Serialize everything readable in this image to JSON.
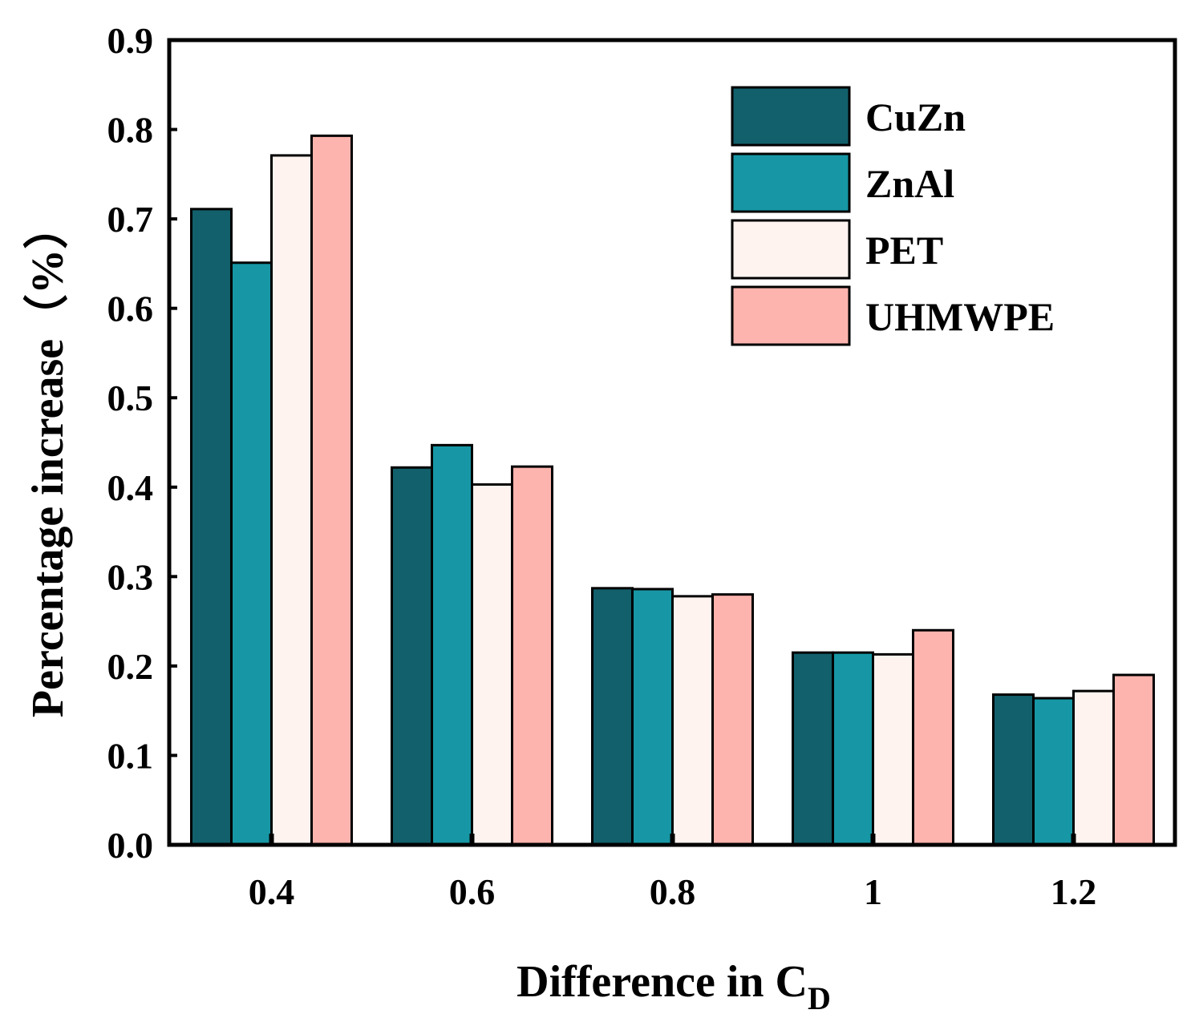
{
  "chart_data": {
    "type": "bar",
    "categories": [
      "0.4",
      "0.6",
      "0.8",
      "1",
      "1.2"
    ],
    "series": [
      {
        "name": "CuZn",
        "color": "#12606b",
        "values": [
          0.711,
          0.422,
          0.287,
          0.215,
          0.168
        ]
      },
      {
        "name": "ZnAl",
        "color": "#1797a5",
        "values": [
          0.651,
          0.447,
          0.286,
          0.215,
          0.164
        ]
      },
      {
        "name": "PET",
        "color": "#fef3ef",
        "values": [
          0.771,
          0.403,
          0.278,
          0.213,
          0.172
        ]
      },
      {
        "name": "UHMWPE",
        "color": "#fdb4ae",
        "values": [
          0.793,
          0.423,
          0.28,
          0.24,
          0.19
        ]
      }
    ],
    "ylim": [
      0,
      0.9
    ],
    "yticks": [
      "0.0",
      "0.1",
      "0.2",
      "0.3",
      "0.4",
      "0.5",
      "0.6",
      "0.7",
      "0.8",
      "0.9"
    ],
    "ylabel": "Percentage increase（%）",
    "xlabel_main": "Difference in C",
    "xlabel_sub": "D",
    "legend_position": "top-right",
    "grid": false
  }
}
